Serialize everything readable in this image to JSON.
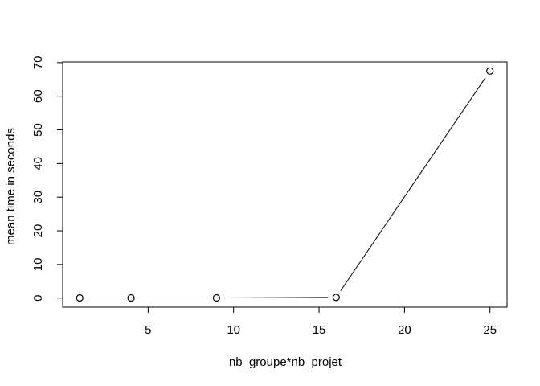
{
  "chart_data": {
    "type": "line",
    "title": "",
    "xlabel": "nb_groupe*nb_projet",
    "ylabel": "mean time in seconds",
    "x": [
      1,
      4,
      9,
      16,
      25
    ],
    "series": [
      {
        "values": [
          0.05,
          0.05,
          0.05,
          0.2,
          67.5
        ]
      }
    ],
    "xlim": [
      0,
      26
    ],
    "ylim": [
      -2.7,
      70.2
    ],
    "xticks": [
      5,
      10,
      15,
      20,
      25
    ],
    "yticks": [
      0,
      10,
      20,
      30,
      40,
      50,
      60,
      70
    ],
    "grid": false,
    "legend": "none",
    "line_style": "both-points-and-lines",
    "colors": {
      "line": "#000000",
      "marker_fill": "#ffffff",
      "background": "#ffffff"
    }
  }
}
